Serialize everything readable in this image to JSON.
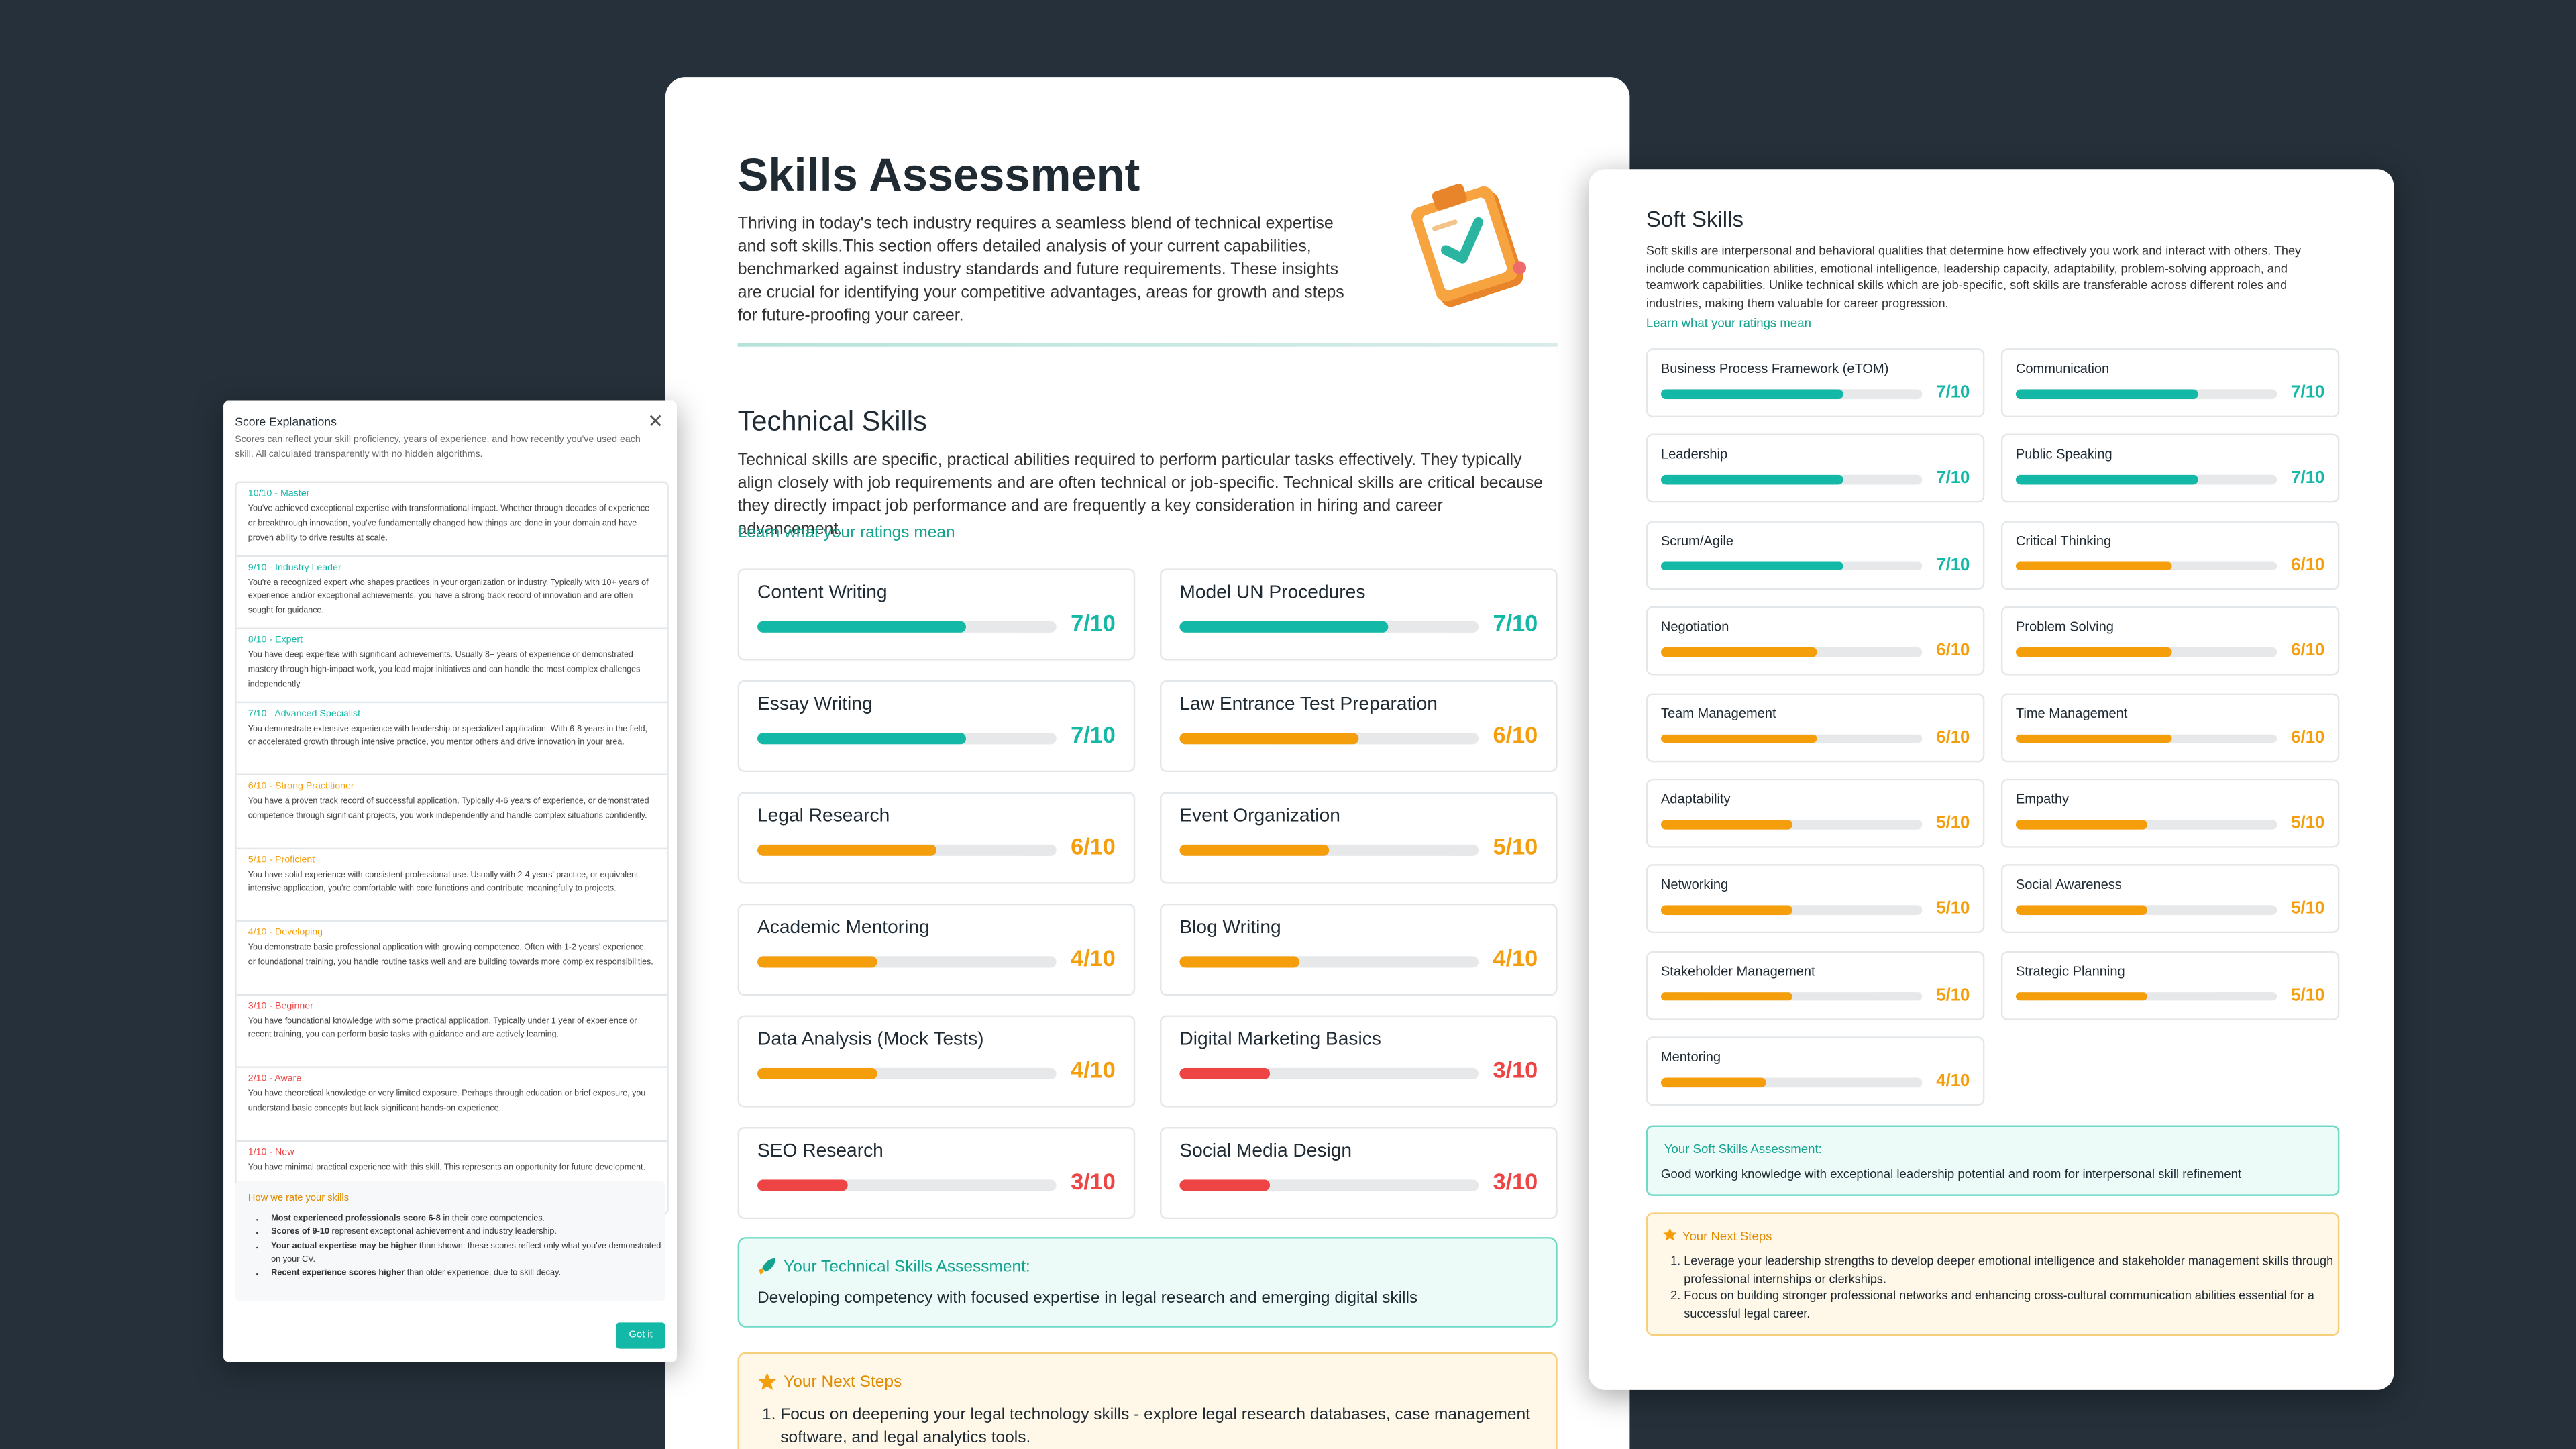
{
  "rating_scale": [
    0,
    10
  ],
  "main": {
    "title": "Skills Assessment",
    "intro": "Thriving in today's tech industry requires a seamless blend of technical expertise and soft skills.This section offers detailed analysis of your current capabilities, benchmarked against industry standards and future requirements. These insights are crucial for identifying your competitive advantages, areas for growth and steps for future-proofing your career.",
    "technical": {
      "heading": "Technical Skills",
      "description": "Technical skills are specific, practical abilities required to perform particular tasks effectively. They typically align closely with job requirements and are often technical or job-specific. Technical skills are critical because they directly impact job performance and are frequently a key consideration in hiring and career advancement.",
      "link": "Learn what your ratings mean",
      "skills": [
        {
          "name": "Content Writing",
          "score": 7,
          "score_label": "7/10",
          "color": "#14b8a6"
        },
        {
          "name": "Model UN Procedures",
          "score": 7,
          "score_label": "7/10",
          "color": "#14b8a6"
        },
        {
          "name": "Essay Writing",
          "score": 7,
          "score_label": "7/10",
          "color": "#14b8a6"
        },
        {
          "name": "Law Entrance Test Preparation",
          "score": 6,
          "score_label": "6/10",
          "color": "#f59e0b"
        },
        {
          "name": "Legal Research",
          "score": 6,
          "score_label": "6/10",
          "color": "#f59e0b"
        },
        {
          "name": "Event Organization",
          "score": 5,
          "score_label": "5/10",
          "color": "#f59e0b"
        },
        {
          "name": "Academic Mentoring",
          "score": 4,
          "score_label": "4/10",
          "color": "#f59e0b"
        },
        {
          "name": "Blog Writing",
          "score": 4,
          "score_label": "4/10",
          "color": "#f59e0b"
        },
        {
          "name": "Data Analysis (Mock Tests)",
          "score": 4,
          "score_label": "4/10",
          "color": "#f59e0b"
        },
        {
          "name": "Digital Marketing Basics",
          "score": 3,
          "score_label": "3/10",
          "color": "#ef4444"
        },
        {
          "name": "SEO Research",
          "score": 3,
          "score_label": "3/10",
          "color": "#ef4444"
        },
        {
          "name": "Social Media Design",
          "score": 3,
          "score_label": "3/10",
          "color": "#ef4444"
        }
      ],
      "assessment_title": "Your Technical Skills Assessment:",
      "assessment": "Developing competency with focused expertise in legal research and emerging digital skills",
      "next_title": "Your Next Steps",
      "next_steps": [
        "Focus on deepening your legal technology skills - explore legal research databases, case management software, and legal analytics tools."
      ]
    }
  },
  "soft": {
    "heading": "Soft Skills",
    "description": "Soft skills are interpersonal and behavioral qualities that determine how effectively you work and interact with others. They include communication abilities, emotional intelligence, leadership capacity, adaptability, problem-solving approach, and teamwork capabilities. Unlike technical skills which are job-specific, soft skills are transferable across different roles and industries, making them valuable for career progression.",
    "link": "Learn what your ratings mean",
    "skills": [
      {
        "name": "Business Process Framework (eTOM)",
        "score": 7,
        "score_label": "7/10",
        "color": "#14b8a6"
      },
      {
        "name": "Communication",
        "score": 7,
        "score_label": "7/10",
        "color": "#14b8a6"
      },
      {
        "name": "Leadership",
        "score": 7,
        "score_label": "7/10",
        "color": "#14b8a6"
      },
      {
        "name": "Public Speaking",
        "score": 7,
        "score_label": "7/10",
        "color": "#14b8a6"
      },
      {
        "name": "Scrum/Agile",
        "score": 7,
        "score_label": "7/10",
        "color": "#14b8a6"
      },
      {
        "name": "Critical Thinking",
        "score": 6,
        "score_label": "6/10",
        "color": "#f59e0b"
      },
      {
        "name": "Negotiation",
        "score": 6,
        "score_label": "6/10",
        "color": "#f59e0b"
      },
      {
        "name": "Problem Solving",
        "score": 6,
        "score_label": "6/10",
        "color": "#f59e0b"
      },
      {
        "name": "Team Management",
        "score": 6,
        "score_label": "6/10",
        "color": "#f59e0b"
      },
      {
        "name": "Time Management",
        "score": 6,
        "score_label": "6/10",
        "color": "#f59e0b"
      },
      {
        "name": "Adaptability",
        "score": 5,
        "score_label": "5/10",
        "color": "#f59e0b"
      },
      {
        "name": "Empathy",
        "score": 5,
        "score_label": "5/10",
        "color": "#f59e0b"
      },
      {
        "name": "Networking",
        "score": 5,
        "score_label": "5/10",
        "color": "#f59e0b"
      },
      {
        "name": "Social Awareness",
        "score": 5,
        "score_label": "5/10",
        "color": "#f59e0b"
      },
      {
        "name": "Stakeholder Management",
        "score": 5,
        "score_label": "5/10",
        "color": "#f59e0b"
      },
      {
        "name": "Strategic Planning",
        "score": 5,
        "score_label": "5/10",
        "color": "#f59e0b"
      },
      {
        "name": "Mentoring",
        "score": 4,
        "score_label": "4/10",
        "color": "#f59e0b"
      }
    ],
    "assessment_title": "Your Soft Skills Assessment:",
    "assessment": "Good working knowledge with exceptional leadership potential and room for interpersonal skill refinement",
    "next_title": "Your Next Steps",
    "next_steps": [
      "Leverage your leadership strengths to develop deeper emotional intelligence and stakeholder management skills through professional internships or clerkships.",
      "Focus on building stronger professional networks and enhancing cross-cultural communication abilities essential for a successful legal career."
    ]
  },
  "modal": {
    "title": "Score Explanations",
    "subtitle": "Scores can reflect your skill proficiency, years of experience, and how recently you've used each skill. All calculated transparently with no hidden algorithms.",
    "levels": [
      {
        "title": "10/10 - Master",
        "color": "#14b8a6",
        "text": "You've achieved exceptional expertise with transformational impact. Whether through decades of experience or breakthrough innovation, you've fundamentally changed how things are done in your domain and have proven ability to drive results at scale."
      },
      {
        "title": "9/10 - Industry Leader",
        "color": "#14b8a6",
        "text": "You're a recognized expert who shapes practices in your organization or industry. Typically with 10+ years of experience and/or exceptional achievements, you have a strong track record of innovation and are often sought for guidance."
      },
      {
        "title": "8/10 - Expert",
        "color": "#14b8a6",
        "text": "You have deep expertise with significant achievements. Usually 8+ years of experience or demonstrated mastery through high-impact work, you lead major initiatives and can handle the most complex challenges independently."
      },
      {
        "title": "7/10 - Advanced Specialist",
        "color": "#14b8a6",
        "text": "You demonstrate extensive experience with leadership or specialized application. With 6-8 years in the field, or accelerated growth through intensive practice, you mentor others and drive innovation in your area."
      },
      {
        "title": "6/10 - Strong Practitioner",
        "color": "#f59e0b",
        "text": "You have a proven track record of successful application. Typically 4-6 years of experience, or demonstrated competence through significant projects, you work independently and handle complex situations confidently."
      },
      {
        "title": "5/10 - Proficient",
        "color": "#f59e0b",
        "text": "You have solid experience with consistent professional use. Usually with 2-4 years' practice, or equivalent intensive application, you're comfortable with core functions and contribute meaningfully to projects."
      },
      {
        "title": "4/10 - Developing",
        "color": "#f59e0b",
        "text": "You demonstrate basic professional application with growing competence. Often with 1-2 years' experience, or foundational training, you handle routine tasks well and are building towards more complex responsibilities."
      },
      {
        "title": "3/10 - Beginner",
        "color": "#ef4444",
        "text": "You have foundational knowledge with some practical application. Typically under 1 year of experience or recent training, you can perform basic tasks with guidance and are actively learning."
      },
      {
        "title": "2/10 - Aware",
        "color": "#ef4444",
        "text": "You have theoretical knowledge or very limited exposure. Perhaps through education or brief exposure, you understand basic concepts but lack significant hands-on experience."
      },
      {
        "title": "1/10 - New",
        "color": "#ef4444",
        "text": "You have minimal practical experience with this skill. This represents an opportunity for future development."
      }
    ],
    "rate_title": "How we rate your skills",
    "rate_points": [
      {
        "bold": "Most experienced professionals score 6-8",
        "text": " in their core competencies."
      },
      {
        "bold": "Scores of 9-10",
        "text": " represent exceptional achievement and industry leadership."
      },
      {
        "bold": "Your actual expertise may be higher",
        "text": " than shown: these scores reflect only what you've demonstrated on your CV."
      },
      {
        "bold": "Recent experience scores higher",
        "text": " than older experience, due to skill decay."
      }
    ],
    "button": "Got it"
  }
}
